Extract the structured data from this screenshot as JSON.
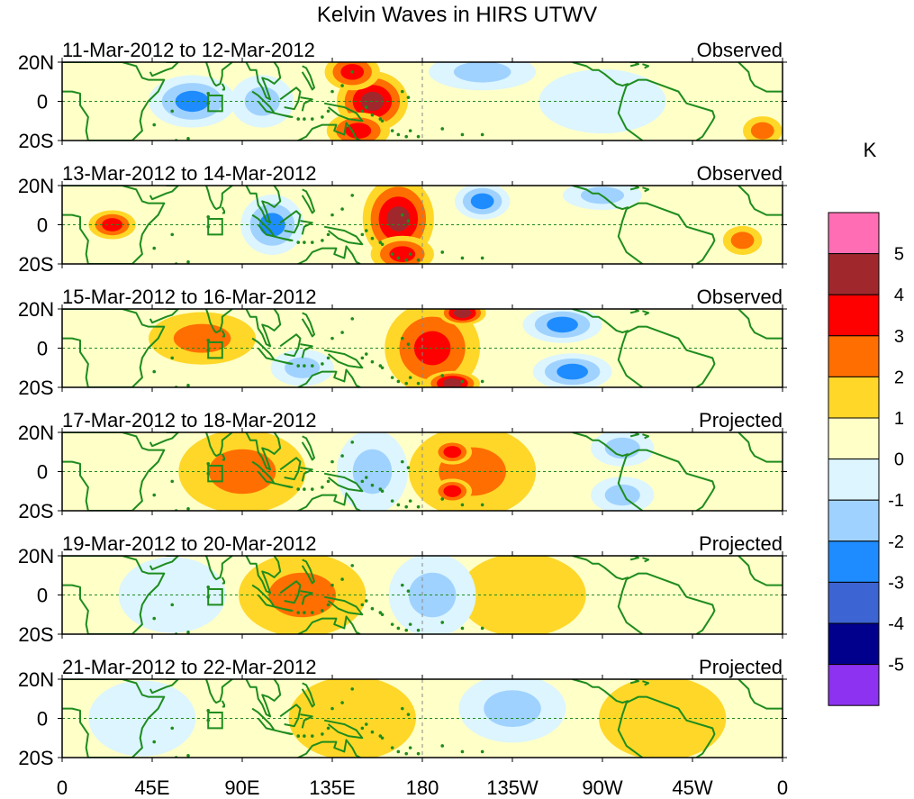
{
  "chart_data": {
    "type": "heatmap",
    "title": "Kelvin Waves in HIRS UTWV",
    "xlabel": "",
    "ylabel": "",
    "x_ticks": [
      "0",
      "45E",
      "90E",
      "135E",
      "180",
      "135W",
      "90W",
      "45W",
      "0"
    ],
    "y_ticks": [
      "20N",
      "0",
      "20S"
    ],
    "x_range_deg_east": [
      0,
      360
    ],
    "y_range_deg_lat": [
      -20,
      20
    ],
    "colorbar": {
      "units": "K",
      "levels": [
        "5",
        "4",
        "3",
        "2",
        "1",
        "0",
        "-1",
        "-2",
        "-3",
        "-4",
        "-5"
      ],
      "colors": [
        "#ff6eb4",
        "#a0282d",
        "#ff0000",
        "#ff6e00",
        "#ffd728",
        "#ffffc8",
        "#dcf5ff",
        "#a0d2ff",
        "#1e8cff",
        "#3c64d2",
        "#00008c",
        "#8c32f0"
      ]
    },
    "panels": [
      {
        "period": "11-Mar-2012 to 12-Mar-2012",
        "kind": "Observed",
        "features": [
          {
            "lon": 155,
            "lat": 0,
            "value": 4.0,
            "lon_w": 16,
            "lat_w": 14
          },
          {
            "lon": 145,
            "lat": 15,
            "value": 3.0,
            "lon_w": 12,
            "lat_w": 8
          },
          {
            "lon": 148,
            "lat": -15,
            "value": 3.0,
            "lon_w": 14,
            "lat_w": 8
          },
          {
            "lon": 65,
            "lat": 0,
            "value": -2.5,
            "lon_w": 20,
            "lat_w": 12
          },
          {
            "lon": 100,
            "lat": 0,
            "value": -2.0,
            "lon_w": 14,
            "lat_w": 12
          },
          {
            "lon": 210,
            "lat": 15,
            "value": -1.5,
            "lon_w": 25,
            "lat_w": 8
          },
          {
            "lon": 270,
            "lat": 0,
            "value": -1.0,
            "lon_w": 30,
            "lat_w": 15
          },
          {
            "lon": 350,
            "lat": -15,
            "value": 1.5,
            "lon_w": 8,
            "lat_w": 6
          }
        ]
      },
      {
        "period": "13-Mar-2012 to 14-Mar-2012",
        "kind": "Observed",
        "features": [
          {
            "lon": 168,
            "lat": 3,
            "value": 3.5,
            "lon_w": 16,
            "lat_w": 20
          },
          {
            "lon": 170,
            "lat": -15,
            "value": 3.0,
            "lon_w": 14,
            "lat_w": 8
          },
          {
            "lon": 25,
            "lat": 0,
            "value": 2.5,
            "lon_w": 10,
            "lat_w": 6
          },
          {
            "lon": 105,
            "lat": 0,
            "value": -2.5,
            "lon_w": 14,
            "lat_w": 14
          },
          {
            "lon": 210,
            "lat": 12,
            "value": -2.5,
            "lon_w": 12,
            "lat_w": 8
          },
          {
            "lon": 270,
            "lat": 15,
            "value": -1.5,
            "lon_w": 18,
            "lat_w": 6
          },
          {
            "lon": 340,
            "lat": -8,
            "value": 2.0,
            "lon_w": 8,
            "lat_w": 6
          }
        ]
      },
      {
        "period": "15-Mar-2012 to 16-Mar-2012",
        "kind": "Observed",
        "features": [
          {
            "lon": 185,
            "lat": 0,
            "value": 2.5,
            "lon_w": 22,
            "lat_w": 22
          },
          {
            "lon": 200,
            "lat": 18,
            "value": 4.0,
            "lon_w": 10,
            "lat_w": 5
          },
          {
            "lon": 195,
            "lat": -18,
            "value": 4.0,
            "lon_w": 12,
            "lat_w": 5
          },
          {
            "lon": 70,
            "lat": 5,
            "value": 2.0,
            "lon_w": 25,
            "lat_w": 12
          },
          {
            "lon": 250,
            "lat": 12,
            "value": -2.5,
            "lon_w": 18,
            "lat_w": 8
          },
          {
            "lon": 255,
            "lat": -12,
            "value": -2.5,
            "lon_w": 18,
            "lat_w": 8
          },
          {
            "lon": 120,
            "lat": -10,
            "value": -2.0,
            "lon_w": 14,
            "lat_w": 8
          }
        ]
      },
      {
        "period": "17-Mar-2012 to 18-Mar-2012",
        "kind": "Projected",
        "features": [
          {
            "lon": 90,
            "lat": 0,
            "value": 2.0,
            "lon_w": 30,
            "lat_w": 20
          },
          {
            "lon": 205,
            "lat": 0,
            "value": 1.5,
            "lon_w": 30,
            "lat_w": 22
          },
          {
            "lon": 195,
            "lat": 10,
            "value": 2.5,
            "lon_w": 8,
            "lat_w": 5
          },
          {
            "lon": 195,
            "lat": -10,
            "value": 2.5,
            "lon_w": 8,
            "lat_w": 5
          },
          {
            "lon": 155,
            "lat": 0,
            "value": -2.0,
            "lon_w": 16,
            "lat_w": 20
          },
          {
            "lon": 280,
            "lat": 12,
            "value": -2.0,
            "lon_w": 14,
            "lat_w": 8
          },
          {
            "lon": 280,
            "lat": -12,
            "value": -2.0,
            "lon_w": 14,
            "lat_w": 8
          }
        ]
      },
      {
        "period": "19-Mar-2012 to 20-Mar-2012",
        "kind": "Projected",
        "features": [
          {
            "lon": 120,
            "lat": 0,
            "value": 1.5,
            "lon_w": 30,
            "lat_w": 20
          },
          {
            "lon": 230,
            "lat": 0,
            "value": 0.7,
            "lon_w": 30,
            "lat_w": 20
          },
          {
            "lon": 185,
            "lat": 0,
            "value": -1.5,
            "lon_w": 20,
            "lat_w": 20
          },
          {
            "lon": 55,
            "lat": 0,
            "value": -0.8,
            "lon_w": 25,
            "lat_w": 18
          }
        ]
      },
      {
        "period": "21-Mar-2012 to 22-Mar-2012",
        "kind": "Projected",
        "features": [
          {
            "lon": 145,
            "lat": 0,
            "value": 0.7,
            "lon_w": 30,
            "lat_w": 20
          },
          {
            "lon": 225,
            "lat": 5,
            "value": -1.2,
            "lon_w": 25,
            "lat_w": 16
          },
          {
            "lon": 40,
            "lat": 0,
            "value": -0.8,
            "lon_w": 25,
            "lat_w": 18
          },
          {
            "lon": 300,
            "lat": 0,
            "value": 0.5,
            "lon_w": 30,
            "lat_w": 20
          }
        ]
      }
    ]
  }
}
